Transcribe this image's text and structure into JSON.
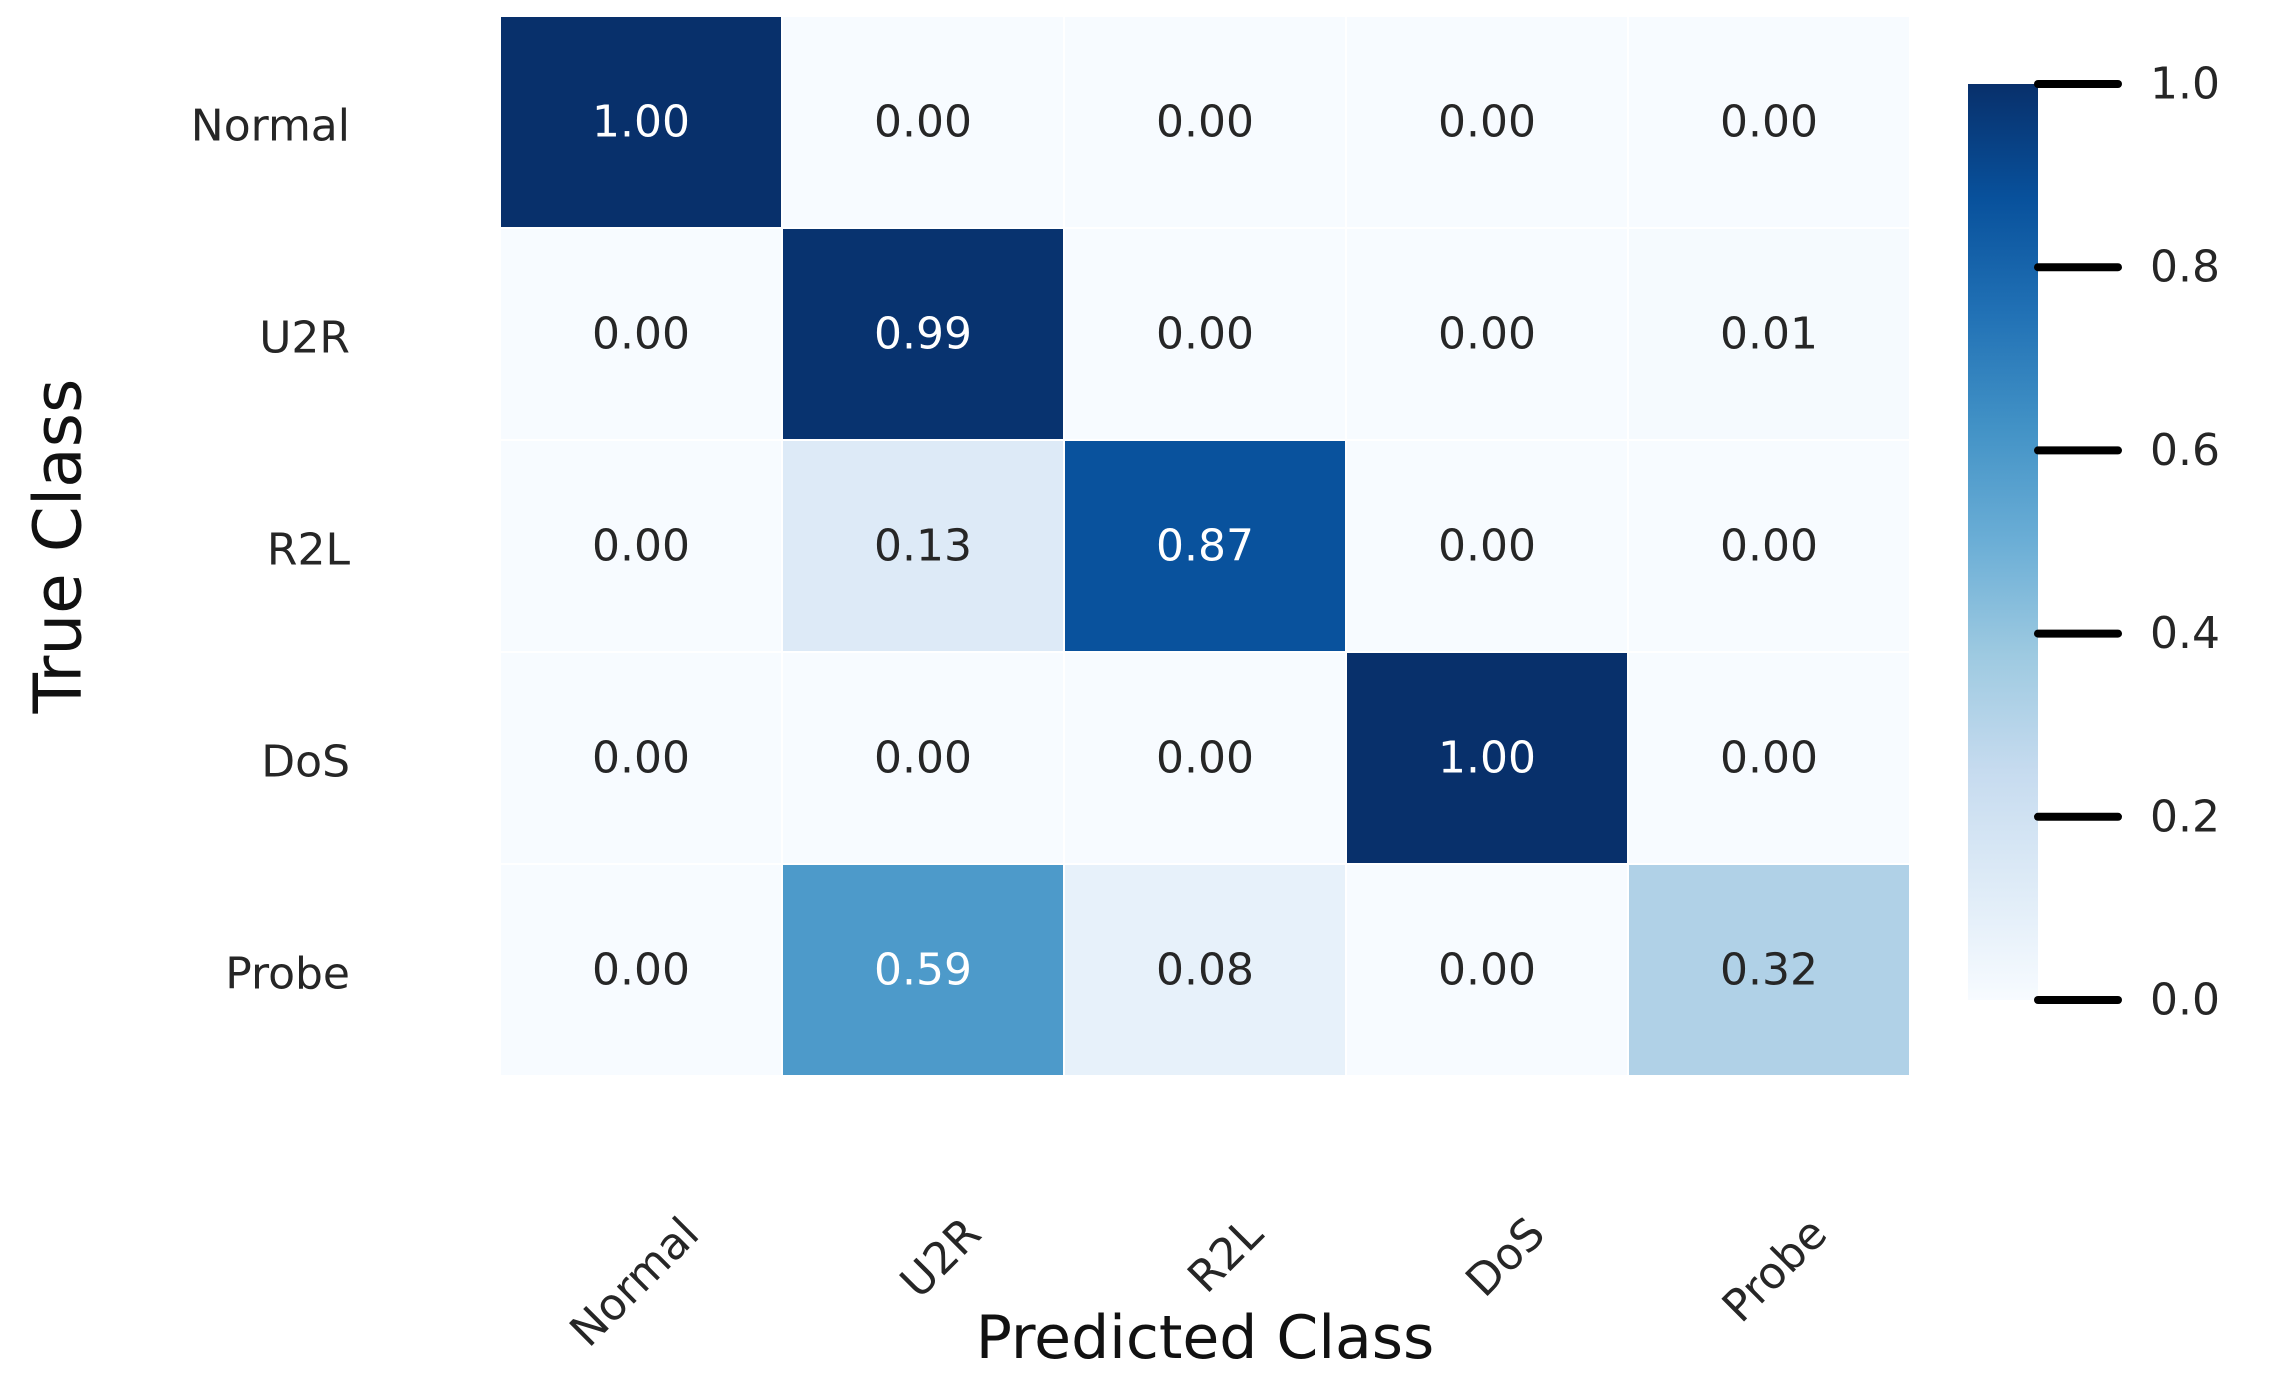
{
  "chart_data": {
    "type": "heatmap",
    "title": "",
    "xlabel": "Predicted Class",
    "ylabel": "True Class",
    "x_categories": [
      "Normal",
      "U2R",
      "R2L",
      "DoS",
      "Probe"
    ],
    "y_categories": [
      "Normal",
      "U2R",
      "R2L",
      "DoS",
      "Probe"
    ],
    "values": [
      [
        1.0,
        0.0,
        0.0,
        0.0,
        0.0
      ],
      [
        0.0,
        0.99,
        0.0,
        0.0,
        0.01
      ],
      [
        0.0,
        0.13,
        0.87,
        0.0,
        0.0
      ],
      [
        0.0,
        0.0,
        0.0,
        1.0,
        0.0
      ],
      [
        0.0,
        0.59,
        0.08,
        0.0,
        0.32
      ]
    ],
    "cell_labels": [
      [
        "1.00",
        "0.00",
        "0.00",
        "0.00",
        "0.00"
      ],
      [
        "0.00",
        "0.99",
        "0.00",
        "0.00",
        "0.01"
      ],
      [
        "0.00",
        "0.13",
        "0.87",
        "0.00",
        "0.00"
      ],
      [
        "0.00",
        "0.00",
        "0.00",
        "1.00",
        "0.00"
      ],
      [
        "0.00",
        "0.59",
        "0.08",
        "0.00",
        "0.32"
      ]
    ],
    "colormap": "Blues",
    "colorscale": [
      "#f7fbff",
      "#deebf7",
      "#c6dbef",
      "#9ecae1",
      "#6baed6",
      "#4292c6",
      "#2171b5",
      "#08519c",
      "#08306b"
    ],
    "colorbar": {
      "range": [
        0.0,
        1.0
      ],
      "ticks": [
        1.0,
        0.8,
        0.6,
        0.4,
        0.2,
        0.0
      ],
      "tick_labels": [
        "1.0",
        "0.8",
        "0.6",
        "0.4",
        "0.2",
        "0.0"
      ]
    },
    "x_tick_rotation_deg": -45,
    "grid": false,
    "legend": "none"
  }
}
